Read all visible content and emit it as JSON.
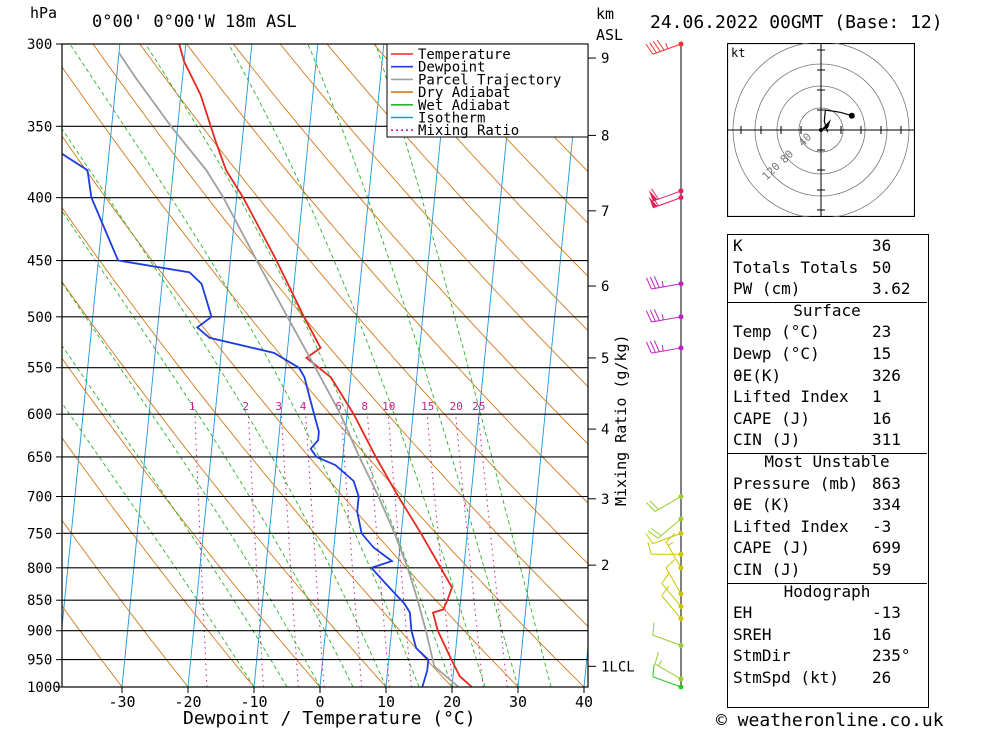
{
  "header": {
    "location": "0°00' 0°00'W 18m ASL",
    "datetime": "24.06.2022 00GMT (Base: 12)",
    "left_unit": "hPa",
    "right_unit_km": "km",
    "right_unit_asl": "ASL",
    "footer": "© weatheronline.co.uk"
  },
  "chart_data": {
    "type": "line",
    "subtype": "skew-T log-P sounding",
    "xlabel": "Dewpoint / Temperature (°C)",
    "ylabel": "hPa",
    "right_label": "Mixing Ratio (g/kg)",
    "x_ticks": [
      -30,
      -20,
      -10,
      0,
      10,
      20,
      30,
      40
    ],
    "p_ticks": [
      300,
      350,
      400,
      450,
      500,
      550,
      600,
      650,
      700,
      750,
      800,
      850,
      900,
      950,
      1000
    ],
    "km_ticks": [
      {
        "p": 962,
        "label": "1LCL"
      },
      {
        "p": 796,
        "label": "2"
      },
      {
        "p": 703,
        "label": "3"
      },
      {
        "p": 617,
        "label": "4"
      },
      {
        "p": 540,
        "label": "5"
      },
      {
        "p": 472,
        "label": "6"
      },
      {
        "p": 410,
        "label": "7"
      },
      {
        "p": 356,
        "label": "8"
      },
      {
        "p": 308,
        "label": "9"
      }
    ],
    "mixing_ratio_labels": [
      "1",
      "2",
      "3",
      "4",
      "6",
      "8",
      "10",
      "15",
      "20",
      "25"
    ],
    "legend": [
      {
        "name": "Temperature",
        "color": "#e8281e",
        "dash": ""
      },
      {
        "name": "Dewpoint",
        "color": "#1c3ce0",
        "dash": ""
      },
      {
        "name": "Parcel Trajectory",
        "color": "#a0a0a0",
        "dash": ""
      },
      {
        "name": "Dry Adiabat",
        "color": "#d27a1e",
        "dash": ""
      },
      {
        "name": "Wet Adiabat",
        "color": "#28b428",
        "dash": ""
      },
      {
        "name": "Isotherm",
        "color": "#1e96dc",
        "dash": ""
      },
      {
        "name": "Mixing Ratio",
        "color": "#c81e8c",
        "dash": "2,3"
      }
    ],
    "series": [
      {
        "name": "Temperature",
        "color": "#e8281e",
        "points": [
          [
            1000,
            23
          ],
          [
            980,
            21
          ],
          [
            950,
            19.5
          ],
          [
            900,
            17
          ],
          [
            870,
            16
          ],
          [
            865,
            17.5
          ],
          [
            850,
            18
          ],
          [
            830,
            18.5
          ],
          [
            800,
            16.5
          ],
          [
            750,
            13
          ],
          [
            700,
            9
          ],
          [
            650,
            5
          ],
          [
            600,
            1
          ],
          [
            560,
            -3
          ],
          [
            540,
            -7
          ],
          [
            530,
            -5
          ],
          [
            500,
            -8
          ],
          [
            450,
            -13
          ],
          [
            400,
            -19
          ],
          [
            380,
            -22
          ],
          [
            360,
            -24
          ],
          [
            330,
            -27
          ],
          [
            310,
            -30
          ],
          [
            300,
            -31
          ]
        ]
      },
      {
        "name": "Dewpoint",
        "color": "#1c3ce0",
        "points": [
          [
            1000,
            15.5
          ],
          [
            970,
            16
          ],
          [
            950,
            16
          ],
          [
            930,
            14
          ],
          [
            900,
            13
          ],
          [
            870,
            12.5
          ],
          [
            855,
            11.5
          ],
          [
            850,
            11
          ],
          [
            830,
            9
          ],
          [
            820,
            8
          ],
          [
            800,
            6
          ],
          [
            790,
            9
          ],
          [
            770,
            6
          ],
          [
            750,
            4
          ],
          [
            720,
            3
          ],
          [
            700,
            3
          ],
          [
            680,
            2
          ],
          [
            660,
            -1
          ],
          [
            650,
            -4
          ],
          [
            640,
            -5
          ],
          [
            630,
            -4
          ],
          [
            620,
            -4
          ],
          [
            600,
            -5
          ],
          [
            580,
            -6
          ],
          [
            560,
            -7
          ],
          [
            550,
            -8
          ],
          [
            535,
            -12
          ],
          [
            520,
            -22
          ],
          [
            510,
            -24
          ],
          [
            500,
            -22
          ],
          [
            470,
            -24
          ],
          [
            460,
            -26
          ],
          [
            450,
            -37
          ],
          [
            400,
            -42
          ],
          [
            380,
            -43
          ],
          [
            350,
            -54
          ],
          [
            320,
            -53
          ],
          [
            300,
            -53
          ]
        ]
      },
      {
        "name": "Parcel Trajectory",
        "color": "#a0a0a0",
        "points": [
          [
            1000,
            21
          ],
          [
            962,
            17
          ],
          [
            900,
            15.2
          ],
          [
            850,
            13.5
          ],
          [
            800,
            11.5
          ],
          [
            750,
            9
          ],
          [
            700,
            6
          ],
          [
            650,
            2.5
          ],
          [
            600,
            -1
          ],
          [
            550,
            -5.5
          ],
          [
            500,
            -10.5
          ],
          [
            450,
            -16
          ],
          [
            400,
            -22
          ],
          [
            380,
            -25
          ],
          [
            350,
            -31
          ],
          [
            320,
            -37
          ],
          [
            305,
            -40
          ]
        ]
      }
    ],
    "dry_adiabats_theta_c": [
      -40,
      -30,
      -20,
      -10,
      0,
      10,
      20,
      30,
      40,
      50,
      60,
      70,
      80,
      90,
      100,
      110,
      120,
      130,
      140,
      150,
      160,
      170
    ],
    "wet_adiabats_c": [
      -10,
      -5,
      0,
      5,
      10,
      15,
      20,
      25,
      30,
      35
    ],
    "mixing_ratios_gkg": [
      1,
      2,
      3,
      4,
      6,
      8,
      10,
      15,
      20,
      25
    ],
    "wind_barbs": [
      {
        "p": 1000,
        "dir": 290,
        "kt": 10,
        "color": "#28c828"
      },
      {
        "p": 985,
        "dir": 300,
        "kt": 15,
        "color": "#9acd32"
      },
      {
        "p": 925,
        "dir": 290,
        "kt": 10,
        "color": "#9acd32"
      },
      {
        "p": 880,
        "dir": 320,
        "kt": 10,
        "color": "#c8c800"
      },
      {
        "p": 860,
        "dir": 320,
        "kt": 10,
        "color": "#c8c800"
      },
      {
        "p": 840,
        "dir": 330,
        "kt": 10,
        "color": "#c8c800"
      },
      {
        "p": 800,
        "dir": 330,
        "kt": 15,
        "color": "#c8c800"
      },
      {
        "p": 780,
        "dir": 270,
        "kt": 10,
        "color": "#c8c800"
      },
      {
        "p": 750,
        "dir": 250,
        "kt": 10,
        "color": "#c8c800"
      },
      {
        "p": 730,
        "dir": 230,
        "kt": 20,
        "color": "#9acd32"
      },
      {
        "p": 700,
        "dir": 240,
        "kt": 20,
        "color": "#9acd32"
      },
      {
        "p": 530,
        "dir": 260,
        "kt": 35,
        "color": "#c020c0"
      },
      {
        "p": 500,
        "dir": 260,
        "kt": 35,
        "color": "#c020c0"
      },
      {
        "p": 470,
        "dir": 260,
        "kt": 35,
        "color": "#c020c0"
      },
      {
        "p": 400,
        "dir": 250,
        "kt": 60,
        "color": "#e0205a"
      },
      {
        "p": 395,
        "dir": 250,
        "kt": 60,
        "color": "#e0205a"
      },
      {
        "p": 300,
        "dir": 250,
        "kt": 45,
        "color": "#ff3030"
      }
    ],
    "hodograph": {
      "unit": "kt",
      "ring_labels": [
        "40",
        "80",
        "120"
      ],
      "trace_uv": [
        [
          6,
          -2
        ],
        [
          3,
          8
        ],
        [
          4,
          18
        ],
        [
          12,
          17
        ],
        [
          18,
          16
        ],
        [
          28,
          13
        ]
      ],
      "storm_motion": {
        "dir": 235,
        "kt": 26
      }
    }
  },
  "indices": {
    "top": [
      {
        "label": "K",
        "value": "36"
      },
      {
        "label": "Totals Totals",
        "value": "50"
      },
      {
        "label": "PW (cm)",
        "value": "3.62"
      }
    ],
    "surface_title": "Surface",
    "surface": [
      {
        "label": "Temp (°C)",
        "value": "23"
      },
      {
        "label": "Dewp (°C)",
        "value": "15"
      },
      {
        "label": "θE(K)",
        "value": "326"
      },
      {
        "label": "Lifted Index",
        "value": "1"
      },
      {
        "label": "CAPE (J)",
        "value": "16"
      },
      {
        "label": "CIN (J)",
        "value": "311"
      }
    ],
    "mu_title": "Most Unstable",
    "mu": [
      {
        "label": "Pressure (mb)",
        "value": "863"
      },
      {
        "label": "θE (K)",
        "value": "334"
      },
      {
        "label": "Lifted Index",
        "value": "-3"
      },
      {
        "label": "CAPE (J)",
        "value": "699"
      },
      {
        "label": "CIN (J)",
        "value": "59"
      }
    ],
    "hodo_title": "Hodograph",
    "hodo": [
      {
        "label": "EH",
        "value": "-13"
      },
      {
        "label": "SREH",
        "value": "16"
      },
      {
        "label": "StmDir",
        "value": "235°"
      },
      {
        "label": "StmSpd (kt)",
        "value": "26"
      }
    ]
  }
}
